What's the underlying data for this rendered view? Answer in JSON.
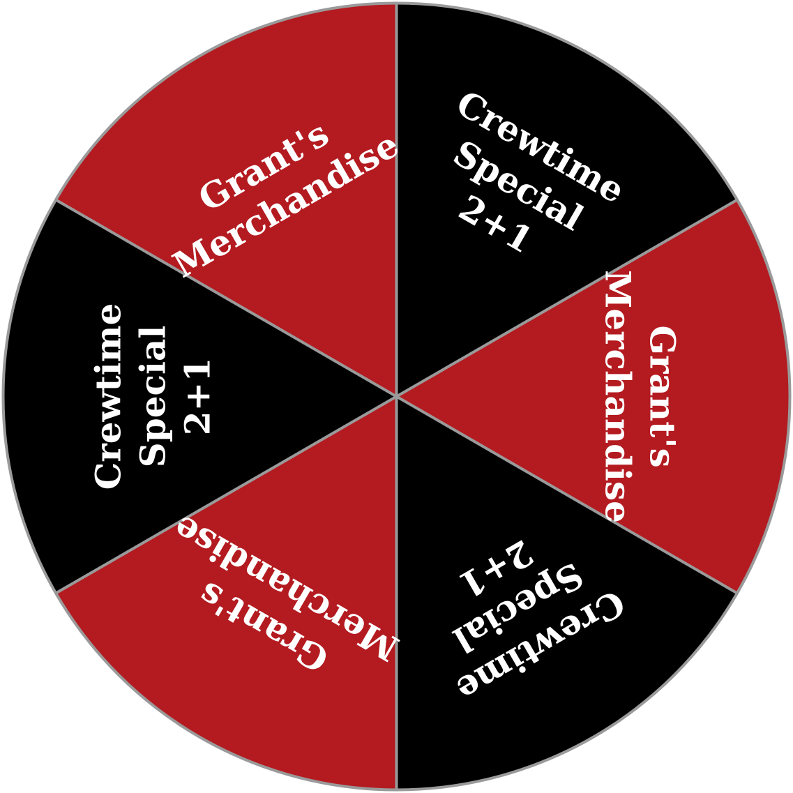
{
  "wheel": {
    "segments": [
      {
        "lines": [
          "Crewtime",
          "Special",
          "2+1"
        ],
        "color": "#000000"
      },
      {
        "lines": [
          "Grant's",
          "Merchandise"
        ],
        "color": "#b31b20"
      },
      {
        "lines": [
          "Crewtime",
          "Special",
          "2+1"
        ],
        "color": "#000000"
      },
      {
        "lines": [
          "Grant's",
          "Merchandise"
        ],
        "color": "#b31b20"
      },
      {
        "lines": [
          "Crewtime",
          "Special",
          "2+1"
        ],
        "color": "#000000"
      },
      {
        "lines": [
          "Grant's",
          "Merchandise"
        ],
        "color": "#b31b20"
      }
    ],
    "divider_color": "#9a9a9a",
    "text_color": "#ffffff"
  }
}
